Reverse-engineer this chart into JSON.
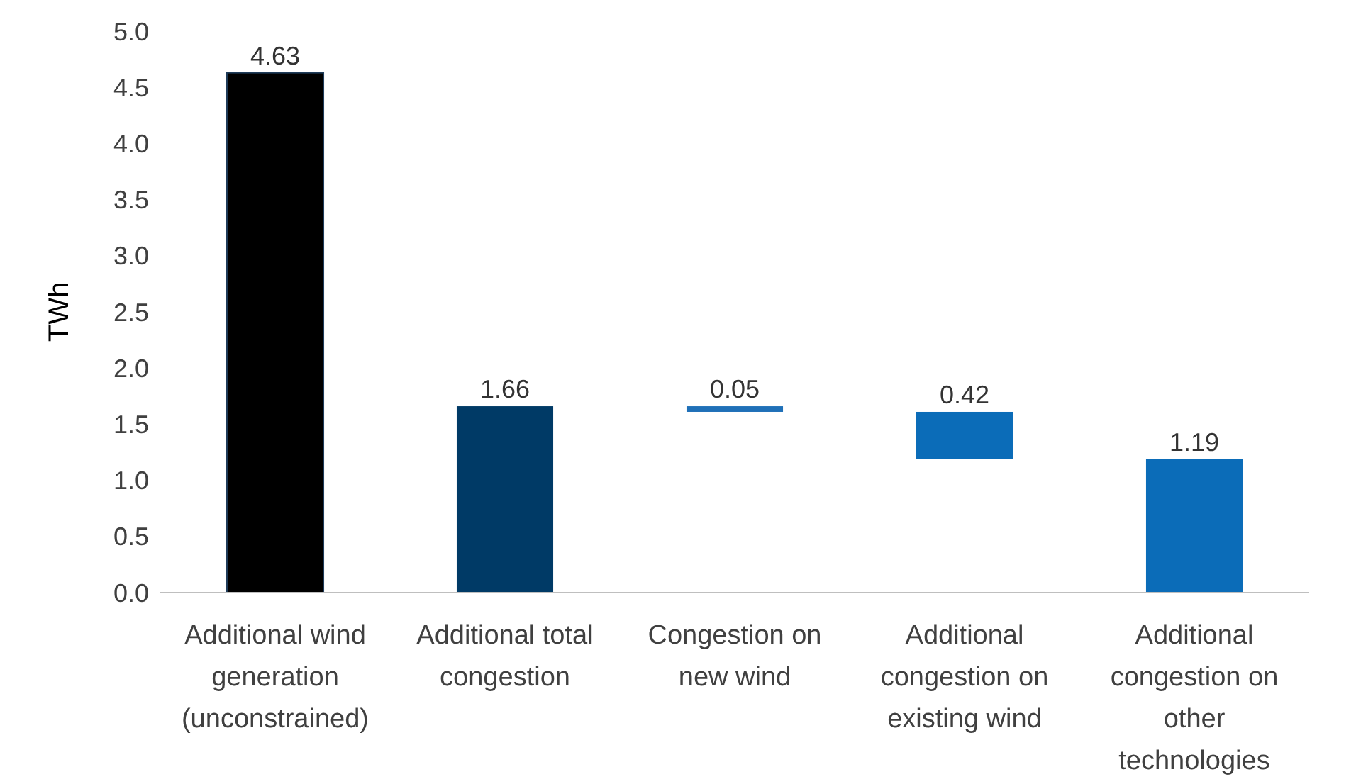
{
  "chart_data": {
    "type": "bar",
    "ylabel": "TWh",
    "categories": [
      "Additional wind generation (unconstrained)",
      "Additional total congestion",
      "Congestion on new wind",
      "Additional congestion on existing wind",
      "Additional congestion on other technologies"
    ],
    "values": [
      4.63,
      1.66,
      0.05,
      0.42,
      1.19
    ],
    "base": [
      0,
      0,
      1.61,
      1.19,
      0
    ],
    "colors": [
      "#000000",
      "#003a66",
      "#1f70b8",
      "#0b6cb8",
      "#0b6cb8"
    ],
    "ylim": [
      0,
      5
    ],
    "yticks": [
      {
        "value": 0,
        "label": "0.0"
      },
      {
        "value": 0.5,
        "label": "0.5"
      },
      {
        "value": 1,
        "label": "1.0"
      },
      {
        "value": 1.5,
        "label": "1.5"
      },
      {
        "value": 2,
        "label": "2.0"
      },
      {
        "value": 2.5,
        "label": "2.5"
      },
      {
        "value": 3,
        "label": "3.0"
      },
      {
        "value": 3.5,
        "label": "3.5"
      },
      {
        "value": 4,
        "label": "4.0"
      },
      {
        "value": 4.5,
        "label": "4.5"
      },
      {
        "value": 5,
        "label": "5.0"
      }
    ],
    "data_labels": true,
    "grid": false
  }
}
